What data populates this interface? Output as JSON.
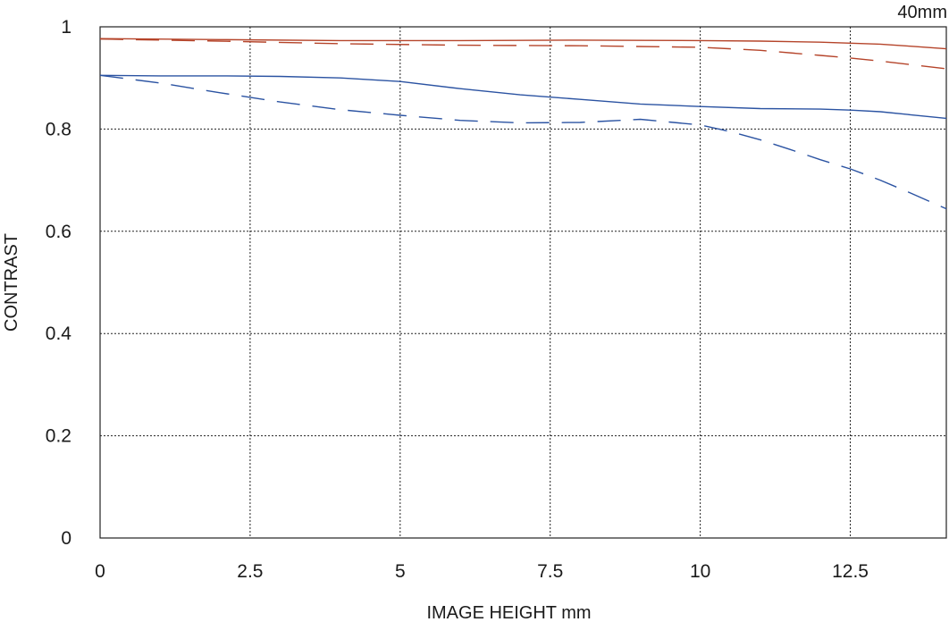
{
  "corner_label": "40mm",
  "chart_data": {
    "type": "line",
    "title": "",
    "xlabel": "IMAGE HEIGHT  mm",
    "ylabel": "CONTRAST",
    "xlim": [
      0,
      14.1
    ],
    "ylim": [
      0,
      1
    ],
    "x_ticks": [
      0,
      2.5,
      5,
      7.5,
      10,
      12.5
    ],
    "x_tick_labels": [
      "0",
      "2.5",
      "5",
      "7.5",
      "10",
      "12.5"
    ],
    "y_ticks": [
      0,
      0.2,
      0.4,
      0.6,
      0.8,
      1
    ],
    "y_tick_labels": [
      "0",
      "0.2",
      "0.4",
      "0.6",
      "0.8",
      "1"
    ],
    "grid": true,
    "legend": "none",
    "series": [
      {
        "color": "#b5442a",
        "dash": "solid",
        "x": [
          0,
          2,
          4,
          6,
          8,
          10,
          11,
          12,
          12.5,
          13,
          13.5,
          14.1
        ],
        "y": [
          0.977,
          0.975,
          0.973,
          0.973,
          0.974,
          0.973,
          0.972,
          0.97,
          0.968,
          0.966,
          0.962,
          0.957
        ]
      },
      {
        "color": "#b5442a",
        "dash": "dashed",
        "x": [
          0,
          2,
          4,
          6,
          8,
          10,
          11,
          12,
          12.5,
          13,
          13.5,
          14.1
        ],
        "y": [
          0.976,
          0.972,
          0.967,
          0.964,
          0.963,
          0.96,
          0.954,
          0.944,
          0.939,
          0.933,
          0.926,
          0.918
        ]
      },
      {
        "color": "#2b53a2",
        "dash": "solid",
        "x": [
          0,
          1,
          2,
          3,
          4,
          5,
          6,
          7,
          8,
          9,
          10,
          11,
          12,
          12.5,
          13,
          13.5,
          14.1
        ],
        "y": [
          0.905,
          0.904,
          0.904,
          0.903,
          0.9,
          0.893,
          0.879,
          0.867,
          0.858,
          0.849,
          0.844,
          0.84,
          0.839,
          0.837,
          0.834,
          0.828,
          0.821
        ]
      },
      {
        "color": "#2b53a2",
        "dash": "dashed",
        "x": [
          0,
          1,
          2,
          3,
          4,
          5,
          6,
          7,
          8,
          9,
          10,
          10.5,
          11,
          11.5,
          12,
          12.5,
          13,
          13.5,
          14.1
        ],
        "y": [
          0.905,
          0.89,
          0.871,
          0.853,
          0.838,
          0.827,
          0.817,
          0.812,
          0.813,
          0.819,
          0.808,
          0.795,
          0.779,
          0.76,
          0.74,
          0.722,
          0.7,
          0.675,
          0.644
        ]
      }
    ]
  }
}
